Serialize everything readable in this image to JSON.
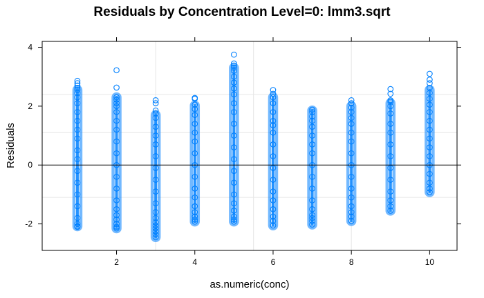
{
  "chart_data": {
    "type": "scatter",
    "title": "Residuals by Concentration Level=0: lmm3.sqrt",
    "xlabel": "as.numeric(conc)",
    "ylabel": "Residuals",
    "xlim": [
      0.1,
      10.7
    ],
    "ylim": [
      -2.9,
      4.2
    ],
    "x_ticks": [
      2,
      4,
      6,
      8,
      10
    ],
    "y_ticks": [
      -2,
      0,
      2,
      4
    ],
    "x_grid": [
      3,
      5.5,
      8
    ],
    "y_grid": [
      -1.1,
      1.1,
      2.4
    ],
    "reference_line_y": 0,
    "point_color": "#0080ff",
    "series": [
      {
        "x": 1,
        "min": -2.08,
        "max": 2.55,
        "points": [
          2.86,
          2.78,
          2.7,
          2.62,
          2.55,
          2.45,
          2.3,
          2.1,
          1.8,
          1.5,
          1.2,
          0.9,
          0.5,
          0.2,
          -0.2,
          -0.6,
          -1.0,
          -1.4,
          -1.8,
          -2.0,
          -2.08,
          -2.1
        ]
      },
      {
        "x": 2,
        "min": -2.15,
        "max": 2.3,
        "points": [
          3.22,
          2.63,
          2.3,
          2.22,
          2.1,
          2.0,
          1.8,
          1.5,
          1.2,
          0.8,
          0.4,
          0.0,
          -0.4,
          -0.8,
          -1.2,
          -1.5,
          -1.7,
          -1.85,
          -2.0,
          -2.1,
          -2.15
        ]
      },
      {
        "x": 3,
        "min": -2.45,
        "max": 1.7,
        "points": [
          2.2,
          2.1,
          1.85,
          1.75,
          1.6,
          1.3,
          1.0,
          0.7,
          0.3,
          -0.1,
          -0.5,
          -0.9,
          -1.3,
          -1.6,
          -1.8,
          -1.95,
          -2.05,
          -2.15,
          -2.25,
          -2.35,
          -2.45
        ]
      },
      {
        "x": 4,
        "min": -1.92,
        "max": 2.02,
        "points": [
          2.28,
          2.25,
          2.05,
          1.9,
          1.7,
          1.4,
          1.1,
          0.8,
          0.4,
          0.0,
          -0.4,
          -0.8,
          -1.1,
          -1.4,
          -1.6,
          -1.75,
          -1.85,
          -1.92
        ]
      },
      {
        "x": 5,
        "min": -1.92,
        "max": 3.3,
        "points": [
          3.75,
          3.45,
          3.38,
          3.3,
          3.2,
          3.0,
          2.8,
          2.6,
          2.4,
          2.1,
          1.8,
          1.4,
          1.0,
          0.6,
          0.2,
          -0.2,
          -0.6,
          -1.0,
          -1.3,
          -1.55,
          -1.75,
          -1.85,
          -1.92
        ]
      },
      {
        "x": 6,
        "min": -2.05,
        "max": 2.3,
        "points": [
          2.55,
          2.42,
          2.3,
          2.1,
          1.8,
          1.5,
          1.35,
          1.1,
          0.7,
          0.3,
          -0.1,
          -0.5,
          -0.9,
          -1.2,
          -1.5,
          -1.75,
          -1.9,
          -2.05
        ]
      },
      {
        "x": 7,
        "min": -2.02,
        "max": 1.85,
        "points": [
          1.88,
          1.8,
          1.65,
          1.5,
          1.3,
          1.0,
          0.7,
          0.4,
          0.0,
          -0.4,
          -0.8,
          -1.2,
          -1.5,
          -1.7,
          -1.8,
          -1.9,
          -2.02
        ]
      },
      {
        "x": 8,
        "min": -1.9,
        "max": 2.0,
        "points": [
          2.2,
          2.1,
          1.95,
          1.8,
          1.6,
          1.4,
          1.1,
          0.8,
          0.4,
          0.0,
          -0.4,
          -0.8,
          -1.1,
          -1.4,
          -1.6,
          -1.75,
          -1.9
        ]
      },
      {
        "x": 9,
        "min": -1.55,
        "max": 2.1,
        "points": [
          2.58,
          2.42,
          2.2,
          2.15,
          2.0,
          1.75,
          1.4,
          1.1,
          0.7,
          0.3,
          -0.1,
          -0.5,
          -0.9,
          -1.2,
          -1.4,
          -1.55
        ]
      },
      {
        "x": 10,
        "min": -0.92,
        "max": 2.55,
        "points": [
          3.1,
          2.9,
          2.78,
          2.62,
          2.45,
          2.25,
          2.05,
          1.8,
          1.5,
          1.2,
          0.9,
          0.6,
          0.3,
          0.0,
          -0.3,
          -0.6,
          -0.8,
          -0.92
        ]
      }
    ]
  }
}
